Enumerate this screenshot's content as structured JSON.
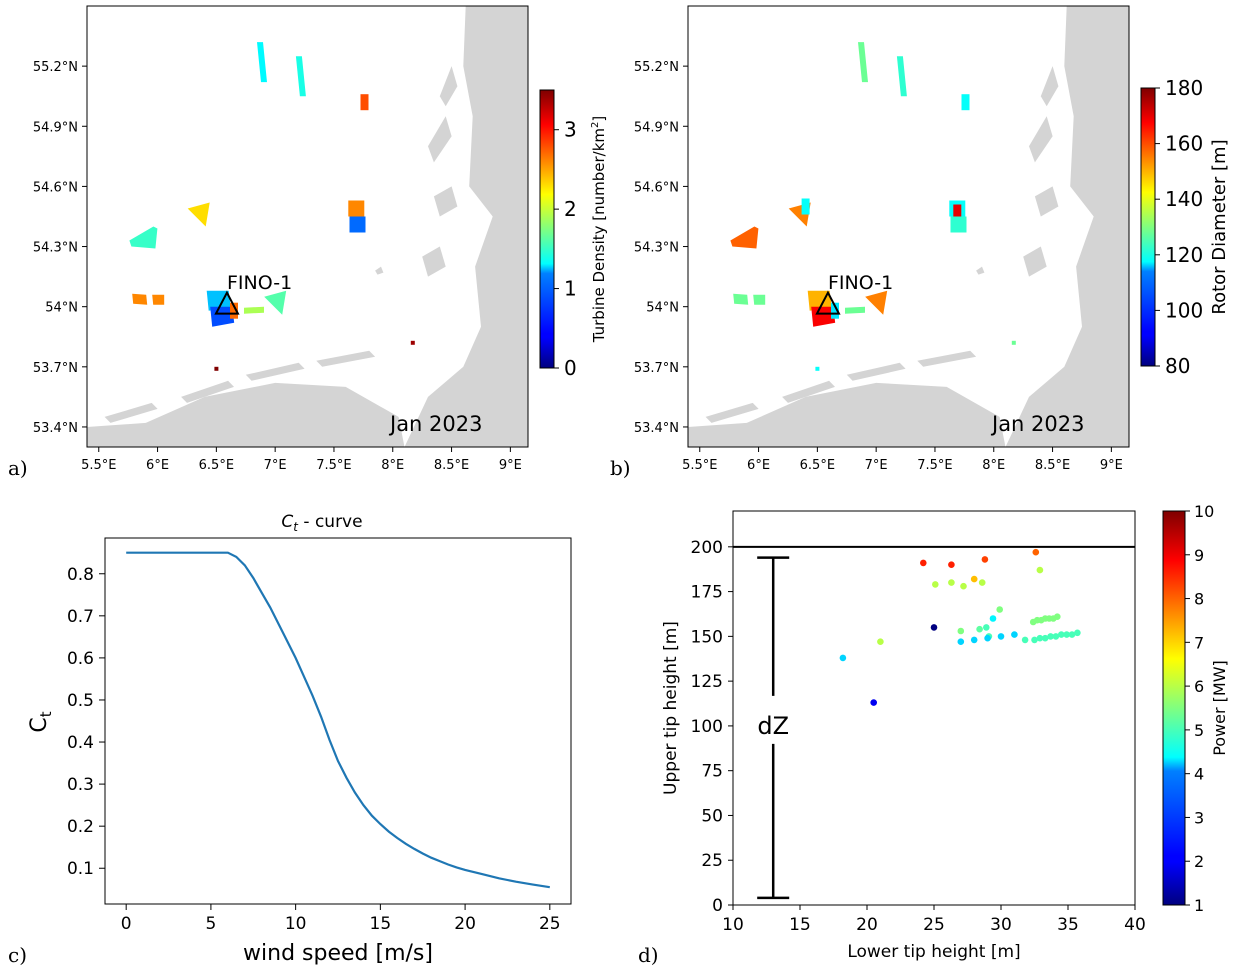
{
  "figure": {
    "panel_labels": [
      "a)",
      "b)",
      "c)",
      "d)"
    ]
  },
  "colors": {
    "land": "#d4d4d4",
    "sea": "#ffffff",
    "curve": "#1f77b4",
    "marker": "#000000"
  },
  "colormap": "jet",
  "chart_data": [
    {
      "type": "map",
      "panel": "a)",
      "xticks": [
        "5.5°E",
        "6°E",
        "6.5°E",
        "7°E",
        "7.5°E",
        "8°E",
        "8.5°E",
        "9°E"
      ],
      "yticks": [
        "55.2°N",
        "54.9°N",
        "54.6°N",
        "54.3°N",
        "54°N",
        "53.7°N",
        "53.4°N"
      ],
      "xlim": [
        5.4,
        9.15
      ],
      "ylim": [
        53.3,
        55.5
      ],
      "marker_label": "FINO-1",
      "marker_lon": 6.59,
      "marker_lat": 54.01,
      "date": "Jan 2023",
      "colorbar": {
        "label_prefix": "Turbine Density [number/km",
        "label_suffix": "]",
        "label_sup": "2",
        "min": 0,
        "max": 3.5,
        "ticks": [
          "0",
          "1",
          "2",
          "3"
        ]
      },
      "farms": [
        {
          "lon": 6.88,
          "lat": 55.22,
          "value": 1.3,
          "shape": "strip"
        },
        {
          "lon": 7.21,
          "lat": 55.15,
          "value": 1.4,
          "shape": "strip"
        },
        {
          "lon": 7.76,
          "lat": 55.02,
          "value": 2.8,
          "shape": "small"
        },
        {
          "lon": 7.69,
          "lat": 54.49,
          "value": 2.6,
          "shape": "block"
        },
        {
          "lon": 7.7,
          "lat": 54.41,
          "value": 0.8,
          "shape": "block"
        },
        {
          "lon": 6.35,
          "lat": 54.46,
          "value": 2.3,
          "shape": "tri"
        },
        {
          "lon": 5.88,
          "lat": 54.34,
          "value": 1.5,
          "shape": "quad"
        },
        {
          "lon": 5.92,
          "lat": 54.04,
          "value": 2.6,
          "shape": "pair"
        },
        {
          "lon": 6.52,
          "lat": 54.03,
          "value": 1.1,
          "shape": "cluster"
        },
        {
          "lon": 6.55,
          "lat": 53.95,
          "value": 0.7,
          "shape": "cluster"
        },
        {
          "lon": 6.65,
          "lat": 53.98,
          "value": 2.7,
          "shape": "small"
        },
        {
          "lon": 6.82,
          "lat": 53.98,
          "value": 1.9,
          "shape": "strip-h"
        },
        {
          "lon": 7.0,
          "lat": 54.02,
          "value": 1.6,
          "shape": "tri"
        },
        {
          "lon": 6.5,
          "lat": 53.69,
          "value": 3.5,
          "shape": "dot"
        },
        {
          "lon": 8.17,
          "lat": 53.82,
          "value": 3.4,
          "shape": "dot"
        }
      ]
    },
    {
      "type": "map",
      "panel": "b)",
      "xticks": [
        "5.5°E",
        "6°E",
        "6.5°E",
        "7°E",
        "7.5°E",
        "8°E",
        "8.5°E",
        "9°E"
      ],
      "yticks": [
        "55.2°N",
        "54.9°N",
        "54.6°N",
        "54.3°N",
        "54°N",
        "53.7°N",
        "53.4°N"
      ],
      "xlim": [
        5.4,
        9.15
      ],
      "ylim": [
        53.3,
        55.5
      ],
      "marker_label": "FINO-1",
      "marker_lon": 6.59,
      "marker_lat": 54.01,
      "date": "Jan 2023",
      "colorbar": {
        "label": "Rotor Diameter [m]",
        "min": 80,
        "max": 180,
        "ticks": [
          "80",
          "100",
          "120",
          "140",
          "160",
          "180"
        ]
      },
      "farms": [
        {
          "lon": 6.88,
          "lat": 55.22,
          "value": 128,
          "shape": "strip"
        },
        {
          "lon": 7.21,
          "lat": 55.15,
          "value": 122,
          "shape": "strip"
        },
        {
          "lon": 7.76,
          "lat": 55.02,
          "value": 118,
          "shape": "small"
        },
        {
          "lon": 7.69,
          "lat": 54.49,
          "value": 118,
          "shape": "block"
        },
        {
          "lon": 7.69,
          "lat": 54.47,
          "value": 170,
          "shape": "small"
        },
        {
          "lon": 7.7,
          "lat": 54.41,
          "value": 122,
          "shape": "block"
        },
        {
          "lon": 6.35,
          "lat": 54.46,
          "value": 155,
          "shape": "tri"
        },
        {
          "lon": 6.4,
          "lat": 54.5,
          "value": 118,
          "shape": "small"
        },
        {
          "lon": 5.88,
          "lat": 54.34,
          "value": 158,
          "shape": "quad"
        },
        {
          "lon": 5.92,
          "lat": 54.04,
          "value": 128,
          "shape": "pair"
        },
        {
          "lon": 6.52,
          "lat": 54.03,
          "value": 150,
          "shape": "cluster"
        },
        {
          "lon": 6.55,
          "lat": 53.95,
          "value": 168,
          "shape": "cluster"
        },
        {
          "lon": 6.65,
          "lat": 53.98,
          "value": 115,
          "shape": "small"
        },
        {
          "lon": 6.82,
          "lat": 53.98,
          "value": 128,
          "shape": "strip-h"
        },
        {
          "lon": 7.0,
          "lat": 54.02,
          "value": 155,
          "shape": "tri"
        },
        {
          "lon": 6.5,
          "lat": 53.69,
          "value": 118,
          "shape": "dot"
        },
        {
          "lon": 8.17,
          "lat": 53.82,
          "value": 128,
          "shape": "dot"
        }
      ]
    },
    {
      "type": "line",
      "panel": "c)",
      "title_base": "C",
      "title_sub": "t",
      "title_rest": " - curve",
      "xlabel": "wind speed [m/s]",
      "ylabel_base": "C",
      "ylabel_sub": "t",
      "xlim": [
        -1.25,
        26.25
      ],
      "ylim": [
        0.015,
        0.885
      ],
      "xticks": [
        0,
        5,
        10,
        15,
        20,
        25
      ],
      "yticks": [
        0.1,
        0.2,
        0.3,
        0.4,
        0.5,
        0.6,
        0.7,
        0.8
      ],
      "x": [
        0,
        1,
        2,
        3,
        4,
        5,
        6,
        6.5,
        7,
        7.5,
        8,
        8.5,
        9,
        9.5,
        10,
        10.5,
        11,
        11.5,
        12,
        12.5,
        13,
        13.5,
        14,
        14.5,
        15,
        15.5,
        16,
        16.5,
        17,
        17.5,
        18,
        18.5,
        19,
        19.5,
        20,
        21,
        22,
        23,
        24,
        25
      ],
      "y": [
        0.85,
        0.85,
        0.85,
        0.85,
        0.85,
        0.85,
        0.85,
        0.84,
        0.82,
        0.79,
        0.755,
        0.72,
        0.68,
        0.64,
        0.6,
        0.555,
        0.51,
        0.46,
        0.405,
        0.355,
        0.315,
        0.28,
        0.25,
        0.225,
        0.205,
        0.187,
        0.172,
        0.158,
        0.146,
        0.135,
        0.125,
        0.117,
        0.109,
        0.102,
        0.096,
        0.086,
        0.076,
        0.068,
        0.061,
        0.055
      ]
    },
    {
      "type": "scatter",
      "panel": "d)",
      "title": "",
      "xlabel": "Lower tip height [m]",
      "ylabel": "Upper tip height [m]",
      "xlim": [
        10,
        40
      ],
      "ylim": [
        0,
        220
      ],
      "xticks": [
        10,
        15,
        20,
        25,
        30,
        35,
        40
      ],
      "yticks": [
        0,
        25,
        50,
        75,
        100,
        125,
        150,
        175,
        200
      ],
      "hline": 200,
      "annotation": {
        "label": "dZ",
        "x": 13,
        "y_bottom": 4,
        "y_top": 194,
        "y_label": 100
      },
      "colorbar": {
        "label": "Power [MW]",
        "min": 1,
        "max": 10,
        "ticks": [
          "1",
          "2",
          "3",
          "4",
          "5",
          "6",
          "7",
          "8",
          "9",
          "10"
        ]
      },
      "points": [
        [
          24.2,
          191,
          8.6
        ],
        [
          26.3,
          190,
          8.6
        ],
        [
          28.8,
          193,
          8.3
        ],
        [
          32.6,
          197,
          8.0
        ],
        [
          28.0,
          182,
          7.2
        ],
        [
          25.1,
          179,
          6.0
        ],
        [
          26.3,
          180,
          6.0
        ],
        [
          27.2,
          178,
          6.0
        ],
        [
          28.6,
          180,
          6.0
        ],
        [
          32.9,
          187,
          6.0
        ],
        [
          29.9,
          165,
          5.5
        ],
        [
          29.4,
          160,
          4.3
        ],
        [
          27.0,
          153,
          5.5
        ],
        [
          28.4,
          154,
          5.2
        ],
        [
          28.9,
          155,
          5.0
        ],
        [
          29.1,
          150,
          5.0
        ],
        [
          21.0,
          147,
          6.0
        ],
        [
          32.4,
          158,
          5.5
        ],
        [
          32.7,
          159,
          5.5
        ],
        [
          33.0,
          159,
          5.5
        ],
        [
          33.3,
          160,
          5.5
        ],
        [
          33.6,
          160,
          5.5
        ],
        [
          33.9,
          160,
          5.5
        ],
        [
          34.2,
          161,
          5.5
        ],
        [
          32.5,
          148,
          5.0
        ],
        [
          32.9,
          149,
          5.0
        ],
        [
          33.3,
          149,
          5.0
        ],
        [
          33.7,
          150,
          5.0
        ],
        [
          34.1,
          150,
          5.0
        ],
        [
          34.5,
          151,
          5.0
        ],
        [
          34.9,
          151,
          5.0
        ],
        [
          35.3,
          151,
          5.0
        ],
        [
          35.7,
          152,
          5.0
        ],
        [
          31.8,
          148,
          5.0
        ],
        [
          29.0,
          149,
          4.0
        ],
        [
          30.0,
          150,
          4.0
        ],
        [
          31.0,
          151,
          4.0
        ],
        [
          27.0,
          147,
          4.0
        ],
        [
          28.0,
          148,
          4.0
        ],
        [
          25.0,
          155,
          1.0
        ],
        [
          18.2,
          138,
          4.0
        ],
        [
          20.5,
          113,
          2.0
        ]
      ]
    }
  ]
}
